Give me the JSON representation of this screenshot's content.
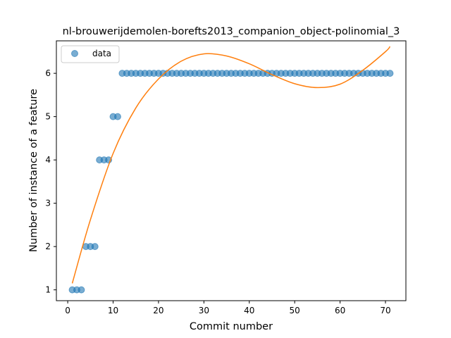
{
  "chart_data": {
    "type": "scatter",
    "title": "nl-brouwerijdemolen-borefts2013_companion_object-polinomial_3",
    "xlabel": "Commit number",
    "ylabel": "Number of instance of a feature",
    "xlim": [
      -2.5,
      74.5
    ],
    "ylim": [
      0.75,
      6.75
    ],
    "xticks": [
      0,
      10,
      20,
      30,
      40,
      50,
      60,
      70
    ],
    "yticks": [
      1,
      2,
      3,
      4,
      5,
      6
    ],
    "grid": false,
    "legend_position": "top-left",
    "series": [
      {
        "name": "data",
        "kind": "scatter",
        "color": "#1f77b4",
        "x": [
          1,
          2,
          3,
          4,
          5,
          6,
          7,
          8,
          9,
          10,
          11,
          12,
          13,
          14,
          15,
          16,
          17,
          18,
          19,
          20,
          21,
          22,
          23,
          24,
          25,
          26,
          27,
          28,
          29,
          30,
          31,
          32,
          33,
          34,
          35,
          36,
          37,
          38,
          39,
          40,
          41,
          42,
          43,
          44,
          45,
          46,
          47,
          48,
          49,
          50,
          51,
          52,
          53,
          54,
          55,
          56,
          57,
          58,
          59,
          60,
          61,
          62,
          63,
          64,
          65,
          66,
          67,
          68,
          69,
          70,
          71
        ],
        "y": [
          1,
          1,
          1,
          2,
          2,
          2,
          4,
          4,
          4,
          5,
          5,
          6,
          6,
          6,
          6,
          6,
          6,
          6,
          6,
          6,
          6,
          6,
          6,
          6,
          6,
          6,
          6,
          6,
          6,
          6,
          6,
          6,
          6,
          6,
          6,
          6,
          6,
          6,
          6,
          6,
          6,
          6,
          6,
          6,
          6,
          6,
          6,
          6,
          6,
          6,
          6,
          6,
          6,
          6,
          6,
          6,
          6,
          6,
          6,
          6,
          6,
          6,
          6,
          6,
          6,
          6,
          6,
          6,
          6,
          6,
          6
        ]
      },
      {
        "kind": "line",
        "color": "#ff7f0e",
        "x": [
          1,
          5,
          10,
          15,
          20,
          25,
          30,
          35,
          40,
          45,
          50,
          55,
          60,
          65,
          70,
          71
        ],
        "y": [
          1.15,
          2.62,
          4.15,
          5.2,
          5.87,
          6.28,
          6.45,
          6.4,
          6.22,
          5.97,
          5.76,
          5.67,
          5.75,
          6.07,
          6.5,
          6.62
        ]
      }
    ]
  }
}
